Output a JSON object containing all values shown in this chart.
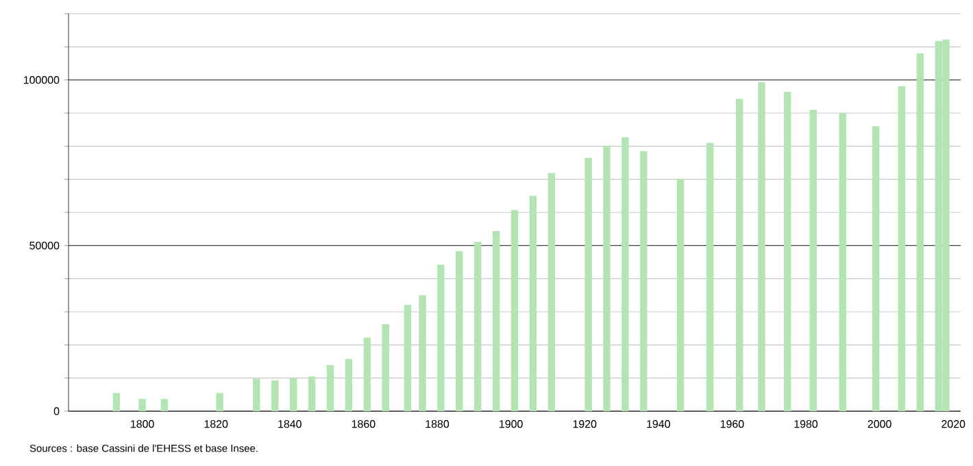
{
  "chart_data": {
    "type": "bar",
    "color": "#b3e4b3",
    "x": [
      1793,
      1800,
      1806,
      1821,
      1831,
      1836,
      1841,
      1846,
      1851,
      1856,
      1861,
      1866,
      1872,
      1876,
      1881,
      1886,
      1891,
      1896,
      1901,
      1906,
      1911,
      1921,
      1926,
      1931,
      1936,
      1946,
      1954,
      1962,
      1968,
      1975,
      1982,
      1990,
      1999,
      2006,
      2011,
      2016,
      2018
    ],
    "values": [
      5500,
      3700,
      3700,
      5500,
      9800,
      9300,
      10000,
      10500,
      13900,
      15800,
      22200,
      26300,
      32100,
      35000,
      44200,
      48300,
      51100,
      54400,
      60700,
      65000,
      71900,
      76500,
      80100,
      82700,
      78500,
      70100,
      81000,
      94300,
      99300,
      96400,
      91000,
      90000,
      86000,
      98100,
      108000,
      111800,
      112200
    ],
    "xlim": [
      1780,
      2022
    ],
    "xticks": [
      1800,
      1820,
      1840,
      1860,
      1880,
      1900,
      1920,
      1940,
      1960,
      1980,
      2000,
      2020
    ],
    "ylim": [
      0,
      120000
    ],
    "yticks": [
      0,
      {
        "value": 10000,
        "label": null
      },
      {
        "value": 20000,
        "label": null
      },
      {
        "value": 30000,
        "label": null
      },
      {
        "value": 40000,
        "label": null
      },
      50000,
      {
        "value": 60000,
        "label": null
      },
      {
        "value": 70000,
        "label": null
      },
      {
        "value": 80000,
        "label": null
      },
      {
        "value": 90000,
        "label": null
      },
      100000,
      {
        "value": 110000,
        "label": null
      },
      {
        "value": 120000,
        "label": null
      }
    ],
    "grid": "y",
    "annotations": [
      "Sources : base Cassini de l'EHESS et base Insee."
    ]
  }
}
